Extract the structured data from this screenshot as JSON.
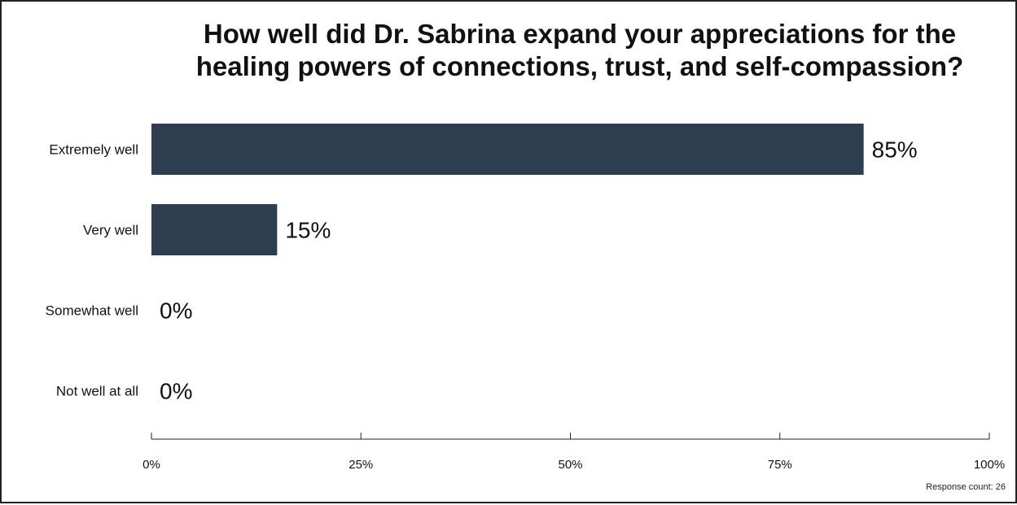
{
  "chart_data": {
    "type": "bar",
    "orientation": "horizontal",
    "title_lines": [
      "How well did Dr. Sabrina expand your appreciations for the",
      "healing powers of connections, trust, and self-compassion?"
    ],
    "categories": [
      "Extremely well",
      "Very well",
      "Somewhat well",
      "Not well at all"
    ],
    "values": [
      85,
      15,
      0,
      0
    ],
    "data_labels": [
      "85%",
      "15%",
      "0%",
      "0%"
    ],
    "xlim": [
      0,
      100
    ],
    "x_ticks": [
      0,
      25,
      50,
      75,
      100
    ],
    "x_tick_labels": [
      "0%",
      "25%",
      "50%",
      "75%",
      "100%"
    ],
    "grid": false,
    "bar_color": "#2e3d4f"
  },
  "footer": {
    "response_count": "Response count: 26"
  }
}
